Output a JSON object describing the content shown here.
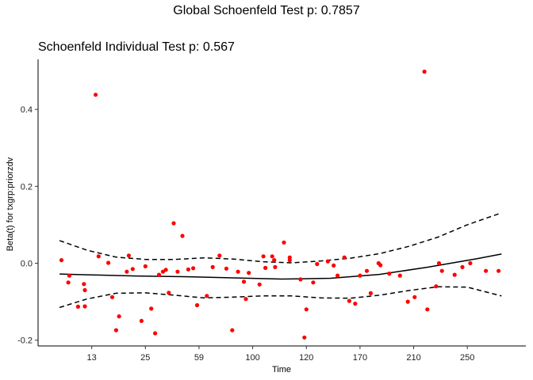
{
  "chart_data": {
    "type": "scatter",
    "title": "Global Schoenfeld Test p: 0.7857",
    "subtitle": "Schoenfeld Individual Test p: 0.567",
    "xlabel": "Time",
    "ylabel": "Beta(t) for txgrp:priorzdv",
    "x_tick_labels": [
      "13",
      "25",
      "59",
      "100",
      "120",
      "170",
      "210",
      "250"
    ],
    "x_tick_positions": [
      5.5,
      11.0,
      16.5,
      22.0,
      27.5,
      33.0,
      38.5,
      44.0
    ],
    "xlim": [
      0,
      50
    ],
    "ylim": [
      -0.215,
      0.53
    ],
    "y_ticks": [
      -0.2,
      0.0,
      0.2,
      0.4
    ],
    "y_tick_labels": [
      "-0.2",
      "0.0",
      "0.2",
      "0.4"
    ],
    "grid": false,
    "point_color": "#ff0000",
    "line_color": "#000000",
    "series": [
      {
        "kind": "points",
        "x": [
          2.4,
          3.1,
          3.2,
          4.1,
          4.7,
          4.8,
          4.8,
          5.9,
          6.2,
          7.2,
          7.6,
          8.0,
          8.3,
          9.1,
          9.3,
          9.7,
          10.6,
          11.0,
          11.6,
          12.0,
          12.4,
          12.8,
          13.1,
          13.4,
          13.9,
          14.3,
          14.8,
          15.4,
          15.9,
          16.3,
          17.3,
          17.9,
          18.6,
          19.3,
          19.9,
          20.5,
          21.1,
          21.3,
          21.6,
          22.7,
          23.1,
          23.3,
          24.0,
          24.2,
          24.3,
          25.2,
          25.8,
          25.8,
          26.9,
          27.3,
          27.5,
          28.2,
          28.6,
          29.7,
          30.3,
          30.7,
          31.4,
          31.9,
          32.5,
          33.0,
          33.7,
          34.1,
          34.9,
          35.1,
          36.0,
          37.1,
          37.9,
          38.6,
          39.6,
          39.9,
          40.8,
          41.1,
          41.4,
          42.7,
          43.5,
          44.3,
          45.9,
          47.2
        ],
        "y": [
          0.008,
          -0.05,
          -0.032,
          -0.113,
          -0.054,
          -0.07,
          -0.112,
          0.438,
          0.018,
          0.001,
          -0.088,
          -0.174,
          -0.138,
          -0.022,
          0.02,
          -0.015,
          -0.15,
          -0.008,
          -0.118,
          -0.182,
          -0.03,
          -0.022,
          -0.017,
          -0.077,
          0.104,
          -0.022,
          0.071,
          -0.016,
          -0.013,
          -0.109,
          -0.085,
          -0.01,
          0.02,
          -0.014,
          -0.174,
          -0.022,
          -0.048,
          -0.093,
          -0.025,
          -0.055,
          0.018,
          -0.012,
          0.018,
          0.008,
          -0.01,
          0.054,
          0.008,
          0.015,
          -0.042,
          -0.193,
          -0.12,
          -0.05,
          -0.002,
          0.005,
          -0.006,
          -0.032,
          0.015,
          -0.098,
          -0.105,
          -0.032,
          -0.02,
          -0.078,
          0.0,
          -0.005,
          -0.027,
          -0.032,
          -0.1,
          -0.088,
          0.498,
          -0.12,
          -0.06,
          0.0,
          -0.02,
          -0.03,
          -0.01,
          0.0,
          -0.02,
          -0.02
        ]
      },
      {
        "kind": "line",
        "style": "solid",
        "x": [
          2.2,
          5,
          10,
          15,
          20,
          25,
          30,
          35,
          40,
          45,
          47.5
        ],
        "y": [
          -0.028,
          -0.03,
          -0.033,
          -0.035,
          -0.038,
          -0.041,
          -0.039,
          -0.029,
          -0.01,
          0.012,
          0.024
        ]
      },
      {
        "kind": "line",
        "style": "dashed",
        "x": [
          2.2,
          5,
          8,
          11,
          14,
          17,
          20,
          23,
          26,
          29,
          32,
          35,
          38,
          41,
          44,
          47.5
        ],
        "y": [
          0.059,
          0.034,
          0.016,
          0.01,
          0.01,
          0.014,
          0.011,
          0.004,
          0.001,
          0.006,
          0.013,
          0.025,
          0.044,
          0.068,
          0.1,
          0.131
        ]
      },
      {
        "kind": "line",
        "style": "dashed",
        "x": [
          2.2,
          5,
          8,
          11,
          14,
          17,
          20,
          23,
          26,
          29,
          32,
          35,
          38,
          41,
          44,
          47.5
        ],
        "y": [
          -0.115,
          -0.093,
          -0.078,
          -0.077,
          -0.083,
          -0.09,
          -0.088,
          -0.085,
          -0.085,
          -0.09,
          -0.091,
          -0.083,
          -0.071,
          -0.061,
          -0.062,
          -0.085
        ]
      }
    ]
  }
}
